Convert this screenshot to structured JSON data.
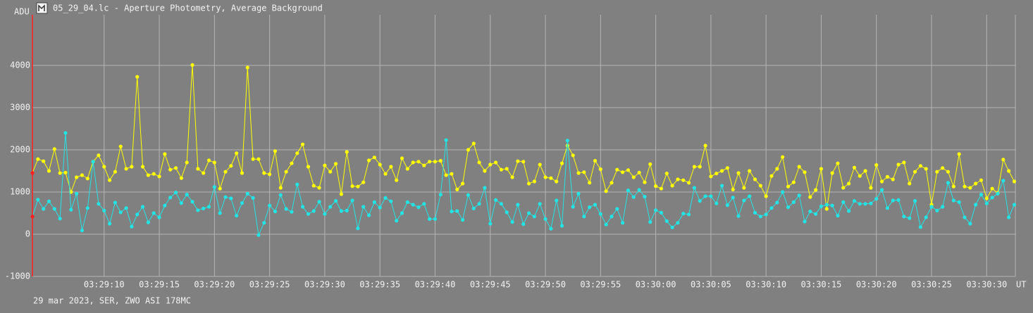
{
  "chart_data": {
    "type": "line",
    "title": "05_29_04.lc - Aperture Photometry, Average Background",
    "y_axis_label": "ADU",
    "x_axis_label": "UT",
    "footer": "29 mar 2023, SER, ZWO ASI 178MC",
    "grid": true,
    "first_point_color": "#ff2020",
    "xlim": [
      12543.5,
      12632.6
    ],
    "ylim": [
      -1000,
      5200
    ],
    "yticks": [
      -1000,
      0,
      1000,
      2000,
      3000,
      4000
    ],
    "xticks": [
      {
        "value": 12550,
        "label": "03:29:10"
      },
      {
        "value": 12555,
        "label": "03:29:15"
      },
      {
        "value": 12560,
        "label": "03:29:20"
      },
      {
        "value": 12565,
        "label": "03:29:25"
      },
      {
        "value": 12570,
        "label": "03:29:30"
      },
      {
        "value": 12575,
        "label": "03:29:35"
      },
      {
        "value": 12580,
        "label": "03:29:40"
      },
      {
        "value": 12585,
        "label": "03:29:45"
      },
      {
        "value": 12590,
        "label": "03:29:50"
      },
      {
        "value": 12595,
        "label": "03:29:55"
      },
      {
        "value": 12600,
        "label": "03:30:00"
      },
      {
        "value": 12605,
        "label": "03:30:05"
      },
      {
        "value": 12610,
        "label": "03:30:10"
      },
      {
        "value": 12615,
        "label": "03:30:15"
      },
      {
        "value": 12620,
        "label": "03:30:20"
      },
      {
        "value": 12625,
        "label": "03:30:25"
      },
      {
        "value": 12630,
        "label": "03:30:30"
      }
    ],
    "x": [
      12543.5,
      12544,
      12544.5,
      12545,
      12545.5,
      12546,
      12546.5,
      12547,
      12547.5,
      12548,
      12548.5,
      12549,
      12549.5,
      12550,
      12550.5,
      12551,
      12551.5,
      12552,
      12552.5,
      12553,
      12553.5,
      12554,
      12554.5,
      12555,
      12555.5,
      12556,
      12556.5,
      12557,
      12557.5,
      12558,
      12558.5,
      12559,
      12559.5,
      12560,
      12560.5,
      12561,
      12561.5,
      12562,
      12562.5,
      12563,
      12563.5,
      12564,
      12564.5,
      12565,
      12565.5,
      12566,
      12566.5,
      12567,
      12567.5,
      12568,
      12568.5,
      12569,
      12569.5,
      12570,
      12570.5,
      12571,
      12571.5,
      12572,
      12572.5,
      12573,
      12573.5,
      12574,
      12574.5,
      12575,
      12575.5,
      12576,
      12576.5,
      12577,
      12577.5,
      12578,
      12578.5,
      12579,
      12579.5,
      12580,
      12580.5,
      12581,
      12581.5,
      12582,
      12582.5,
      12583,
      12583.5,
      12584,
      12584.5,
      12585,
      12585.5,
      12586,
      12586.5,
      12587,
      12587.5,
      12588,
      12588.5,
      12589,
      12589.5,
      12590,
      12590.5,
      12591,
      12591.5,
      12592,
      12592.5,
      12593,
      12593.5,
      12594,
      12594.5,
      12595,
      12595.5,
      12596,
      12596.5,
      12597,
      12597.5,
      12598,
      12598.5,
      12599,
      12599.5,
      12600,
      12600.5,
      12601,
      12601.5,
      12602,
      12602.5,
      12603,
      12603.5,
      12604,
      12604.5,
      12605,
      12605.5,
      12606,
      12606.5,
      12607,
      12607.5,
      12608,
      12608.5,
      12609,
      12609.5,
      12610,
      12610.5,
      12611,
      12611.5,
      12612,
      12612.5,
      12613,
      12613.5,
      12614,
      12614.5,
      12615,
      12615.5,
      12616,
      12616.5,
      12617,
      12617.5,
      12618,
      12618.5,
      12619,
      12619.5,
      12620,
      12620.5,
      12621,
      12621.5,
      12622,
      12622.5,
      12623,
      12623.5,
      12624,
      12624.5,
      12625,
      12625.5,
      12626,
      12626.5,
      12627,
      12627.5,
      12628,
      12628.5,
      12629,
      12629.5,
      12630,
      12630.5,
      12631,
      12631.5,
      12632,
      12632.5
    ],
    "series": [
      {
        "color": "#ffff00",
        "values": [
          1450,
          1780,
          1730,
          1500,
          2020,
          1450,
          1460,
          1000,
          1350,
          1400,
          1320,
          1720,
          1870,
          1600,
          1280,
          1480,
          2080,
          1550,
          1600,
          3730,
          1600,
          1400,
          1430,
          1370,
          1900,
          1530,
          1570,
          1330,
          1700,
          4010,
          1550,
          1450,
          1750,
          1700,
          1080,
          1480,
          1620,
          1920,
          1450,
          3950,
          1780,
          1780,
          1450,
          1420,
          1970,
          1100,
          1480,
          1680,
          1920,
          2130,
          1600,
          1150,
          1100,
          1630,
          1480,
          1670,
          950,
          1950,
          1140,
          1130,
          1230,
          1750,
          1820,
          1650,
          1430,
          1600,
          1280,
          1800,
          1550,
          1700,
          1720,
          1630,
          1720,
          1720,
          1740,
          1400,
          1430,
          1060,
          1200,
          2000,
          2150,
          1700,
          1500,
          1650,
          1700,
          1530,
          1550,
          1350,
          1730,
          1720,
          1200,
          1250,
          1650,
          1350,
          1330,
          1250,
          1680,
          2100,
          1870,
          1450,
          1470,
          1220,
          1740,
          1540,
          1020,
          1220,
          1530,
          1470,
          1520,
          1350,
          1460,
          1230,
          1660,
          1140,
          1080,
          1440,
          1150,
          1300,
          1280,
          1220,
          1600,
          1600,
          2100,
          1370,
          1440,
          1500,
          1570,
          1060,
          1450,
          1100,
          1500,
          1300,
          1150,
          900,
          1380,
          1550,
          1830,
          1130,
          1230,
          1600,
          1470,
          880,
          1050,
          1550,
          600,
          1450,
          1680,
          1100,
          1200,
          1580,
          1380,
          1500,
          1100,
          1640,
          1250,
          1360,
          1300,
          1650,
          1700,
          1200,
          1480,
          1620,
          1550,
          700,
          1480,
          1570,
          1480,
          1130,
          1900,
          1130,
          1100,
          1200,
          1280,
          850,
          1080,
          980,
          1770,
          1500,
          1250
        ]
      },
      {
        "color": "#22e4e4",
        "values": [
          420,
          820,
          600,
          780,
          600,
          370,
          2400,
          580,
          960,
          90,
          620,
          1720,
          720,
          560,
          250,
          750,
          520,
          620,
          180,
          470,
          650,
          280,
          500,
          400,
          680,
          870,
          990,
          740,
          940,
          770,
          570,
          610,
          650,
          1120,
          500,
          880,
          850,
          440,
          740,
          960,
          860,
          -20,
          270,
          680,
          540,
          930,
          600,
          530,
          1180,
          650,
          480,
          550,
          770,
          480,
          650,
          790,
          550,
          560,
          800,
          140,
          650,
          450,
          760,
          630,
          860,
          780,
          320,
          500,
          760,
          700,
          640,
          720,
          360,
          360,
          940,
          2230,
          540,
          550,
          340,
          930,
          610,
          720,
          1100,
          250,
          810,
          720,
          520,
          290,
          700,
          240,
          500,
          420,
          720,
          360,
          130,
          800,
          200,
          2220,
          650,
          960,
          420,
          640,
          700,
          480,
          230,
          420,
          600,
          270,
          1040,
          880,
          1050,
          890,
          290,
          570,
          510,
          310,
          160,
          270,
          490,
          470,
          1100,
          790,
          900,
          900,
          730,
          1150,
          690,
          870,
          430,
          800,
          900,
          510,
          420,
          470,
          620,
          750,
          1000,
          640,
          760,
          920,
          300,
          540,
          480,
          660,
          700,
          680,
          440,
          760,
          550,
          790,
          720,
          720,
          730,
          840,
          1050,
          620,
          800,
          810,
          420,
          380,
          790,
          170,
          400,
          650,
          560,
          650,
          1220,
          800,
          760,
          400,
          250,
          700,
          940,
          730,
          870,
          960,
          1270,
          400,
          700
        ]
      }
    ]
  }
}
